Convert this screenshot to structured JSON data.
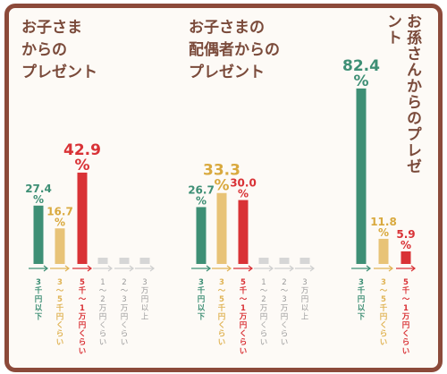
{
  "colors": {
    "frame": "#8c4a3a",
    "title": "#7a4a3a",
    "low": "#3e8f75",
    "mid": "#e8c377",
    "high": "#d93236",
    "other": "#d6d6d6",
    "axis_low": "#3e8f75",
    "axis_mid": "#e0b456",
    "axis_high": "#d93236",
    "axis_other": "#cfcfcf"
  },
  "chart_data": [
    {
      "type": "bar",
      "title": "お子さま\nからの\nプレゼント",
      "categories": [
        "3千円以下",
        "3～5千円くらい",
        "5千～1万円くらい",
        "1～2万円くらい",
        "2～3万円くらい",
        "3万円以上"
      ],
      "values": [
        27.4,
        16.7,
        42.9,
        null,
        null,
        null
      ],
      "value_labels": [
        "27.4\n%",
        "16.7\n%",
        "42.9\n%",
        "",
        "",
        ""
      ],
      "grid": false
    },
    {
      "type": "bar",
      "title": "お子さまの\n配偶者からの\nプレゼント",
      "categories": [
        "3千円以下",
        "3～5千円くらい",
        "5千～1万円くらい",
        "1～2万円くらい",
        "2～3万円くらい",
        "3万円以上"
      ],
      "values": [
        26.7,
        33.3,
        30.0,
        null,
        null,
        null
      ],
      "value_labels": [
        "26.7\n%",
        "33.3\n%",
        "30.0\n%",
        "",
        "",
        ""
      ],
      "grid": false
    },
    {
      "type": "bar",
      "title": "お孫さんからのプレゼント",
      "categories": [
        "3千円以下",
        "3～5千円くらい",
        "5千～1万円くらい"
      ],
      "values": [
        82.4,
        11.8,
        5.9
      ],
      "value_labels": [
        "82.4\n%",
        "11.8\n%",
        "5.9\n%"
      ],
      "grid": false
    }
  ]
}
